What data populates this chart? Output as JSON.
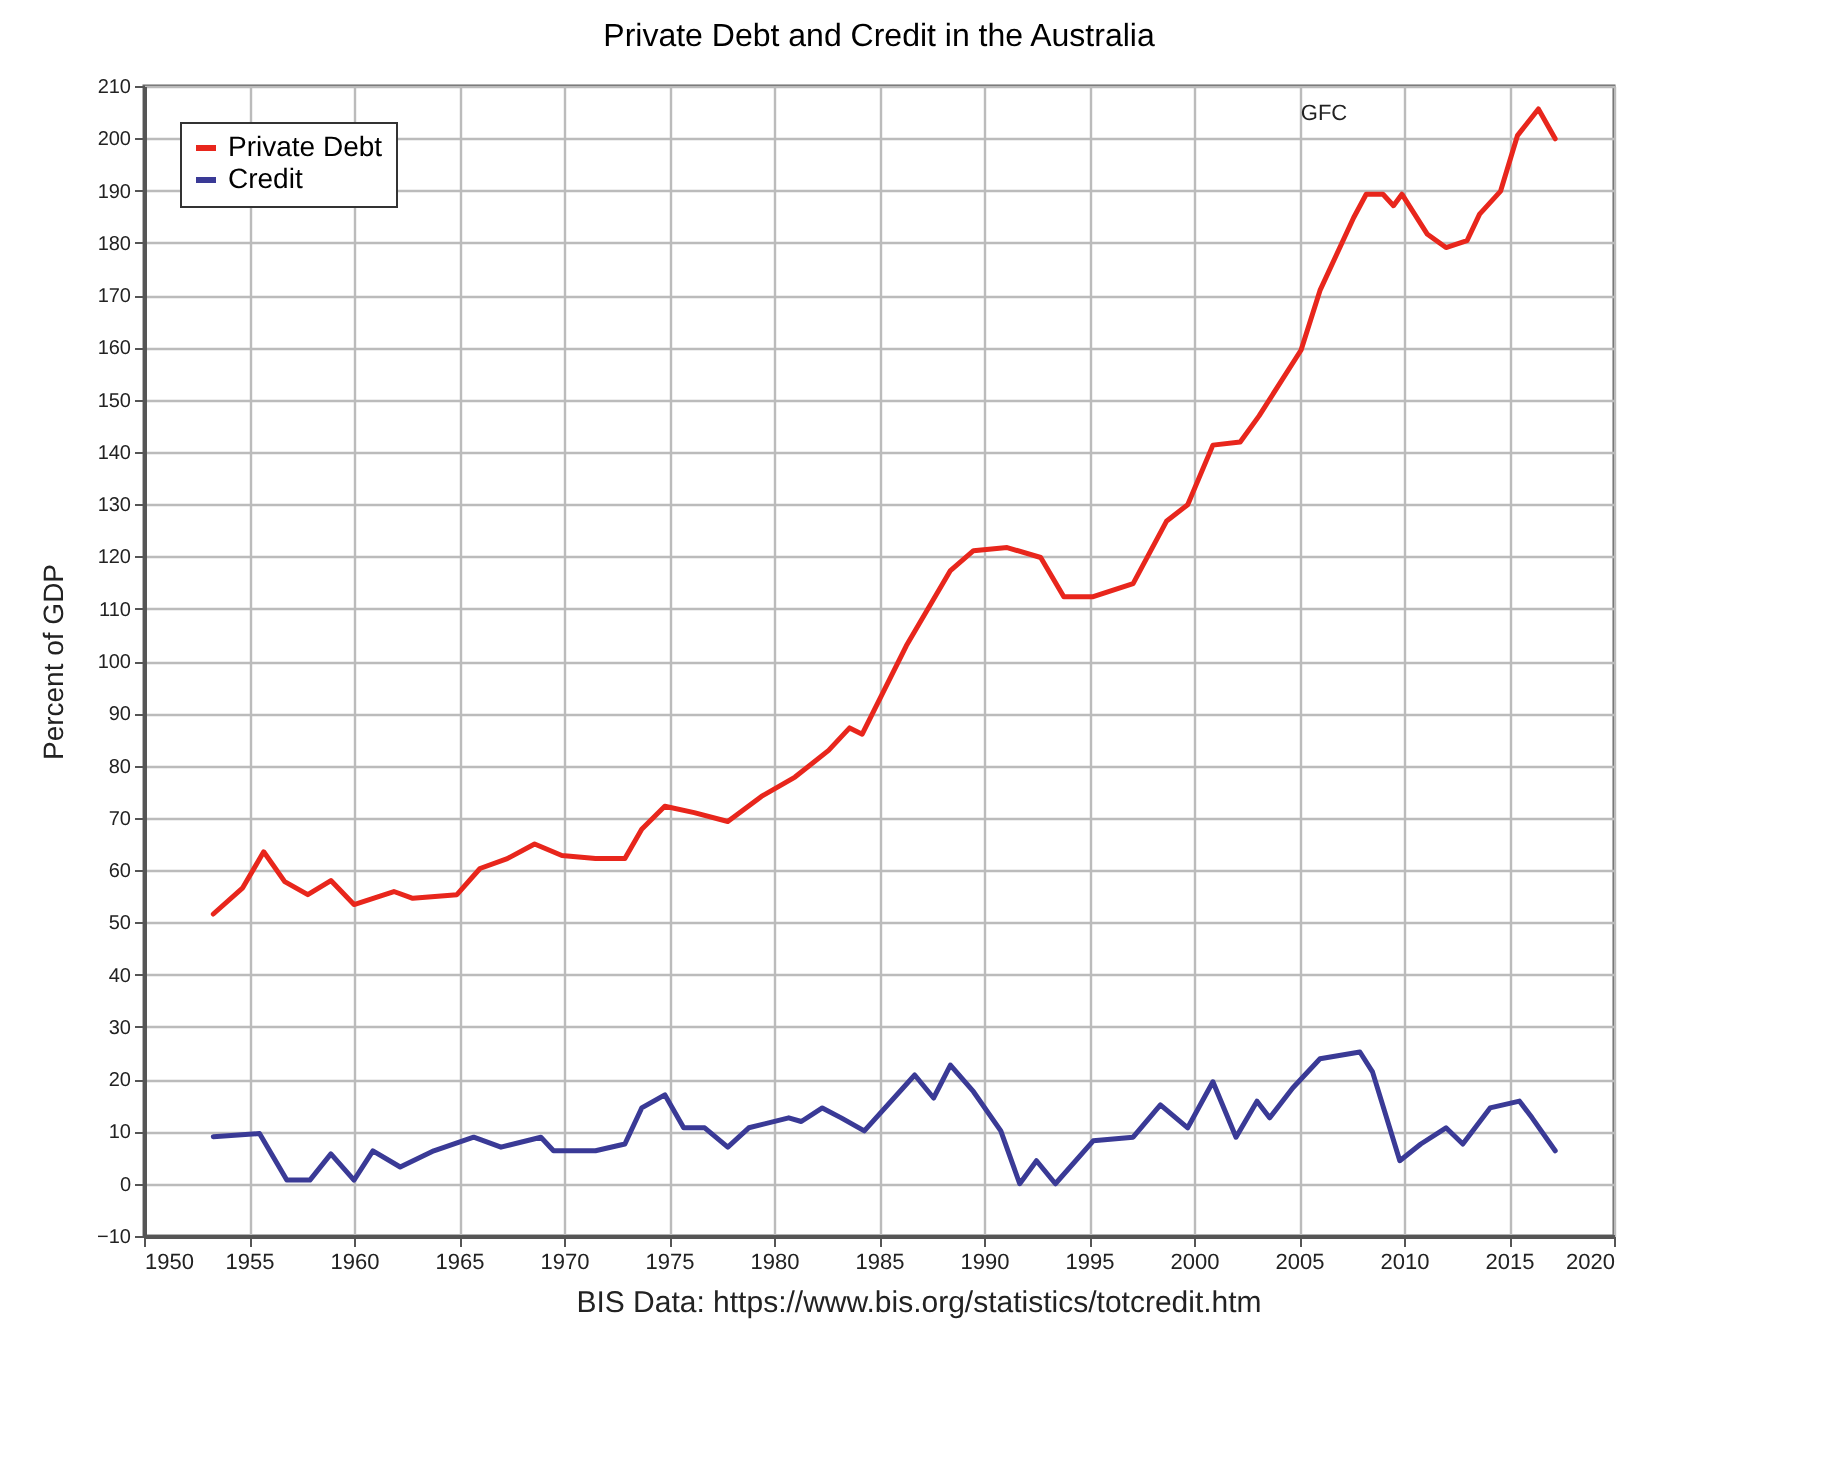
{
  "chart_data": {
    "type": "line",
    "title": "Private Debt and Credit in the Australia",
    "ylabel": "Percent of GDP",
    "xlim": [
      1950,
      2020
    ],
    "xticks": [
      1950,
      1955,
      1960,
      1965,
      1970,
      1975,
      1980,
      1985,
      1990,
      1995,
      2000,
      2005,
      2010,
      2015,
      2020
    ],
    "ylim": [
      -10,
      210
    ],
    "yticks": [
      -10,
      0,
      10,
      20,
      30,
      40,
      50,
      60,
      70,
      80,
      90,
      100,
      110,
      120,
      130,
      140,
      150,
      160,
      170,
      180,
      190,
      200,
      210
    ],
    "grid": true,
    "legend": "top left",
    "line_style": "solid",
    "series": [
      {
        "name": "Private Debt",
        "color": "#e8261c",
        "x": [
          1953.3,
          1954.7,
          1955.7,
          1956.7,
          1957.8,
          1958.9,
          1960,
          1961.9,
          1962.8,
          1964.9,
          1966,
          1967.3,
          1968.6,
          1969.9,
          1971.5,
          1972.9,
          1973.7,
          1974.8,
          1976.2,
          1977.8,
          1979.4,
          1981,
          1982.6,
          1983.6,
          1984.2,
          1986.3,
          1988.4,
          1989.5,
          1991.1,
          1992.7,
          1993.8,
          1995.2,
          1997.1,
          1998.7,
          1999.7,
          2000.9,
          2002.2,
          2003.1,
          2005.1,
          2006,
          2007.6,
          2008.2,
          2009,
          2009.5,
          2009.9,
          2011.1,
          2012,
          2013,
          2013.6,
          2014.6,
          2015.4,
          2016.4,
          2017.2
        ],
        "values": [
          51.6,
          56.6,
          63.5,
          57.8,
          55.3,
          58,
          53.4,
          55.9,
          54.6,
          55.3,
          60.3,
          62.2,
          65,
          62.8,
          62.2,
          62.2,
          67.8,
          72.2,
          71,
          69.3,
          74.1,
          77.8,
          82.9,
          87.2,
          86,
          102.9,
          117.3,
          121.1,
          121.7,
          119.8,
          112.3,
          112.3,
          114.8,
          126.8,
          129.9,
          141.3,
          141.9,
          146.9,
          159.5,
          170.9,
          184.8,
          189.3,
          189.3,
          187.1,
          189.3,
          181.7,
          179.1,
          180.4,
          185.5,
          189.9,
          200.5,
          205.6,
          199.9
        ]
      },
      {
        "name": "Credit",
        "color": "#3a3a96",
        "x": [
          1953.3,
          1955.5,
          1956.8,
          1957.9,
          1958.9,
          1960,
          1960.9,
          1962.2,
          1963.8,
          1965.7,
          1967,
          1968.9,
          1969.5,
          1971.5,
          1972.9,
          1973.7,
          1974.8,
          1975.7,
          1976.7,
          1977.8,
          1978.8,
          1980.7,
          1981.3,
          1982.3,
          1983.2,
          1984.3,
          1986.7,
          1987.6,
          1988.4,
          1989.5,
          1990.8,
          1991.7,
          1992.5,
          1993.4,
          1995.2,
          1997.1,
          1998.4,
          1999.7,
          2000.9,
          2002,
          2003,
          2003.6,
          2004.7,
          2006,
          2007.9,
          2008.5,
          2009.8,
          2010.8,
          2012,
          2012.8,
          2014.1,
          2015.5,
          2016.1,
          2017.2
        ],
        "values": [
          9,
          9.6,
          0.7,
          0.7,
          5.7,
          0.7,
          6.3,
          3.2,
          6.3,
          8.9,
          7,
          8.9,
          6.3,
          6.3,
          7.6,
          14.5,
          17,
          10.7,
          10.7,
          7,
          10.7,
          12.6,
          11.9,
          14.5,
          12.6,
          10.1,
          20.8,
          16.4,
          22.7,
          17.6,
          10.1,
          0,
          4.4,
          0,
          8.2,
          8.9,
          15.1,
          10.7,
          19.5,
          8.9,
          15.8,
          12.6,
          18.3,
          23.9,
          25.2,
          21.4,
          4.4,
          7.6,
          10.7,
          7.6,
          14.5,
          15.8,
          12.6,
          6.3
        ]
      }
    ],
    "annotations": [
      "GFC",
      "BIS Data: https://www.bis.org/statistics/totcredit.htm"
    ]
  }
}
